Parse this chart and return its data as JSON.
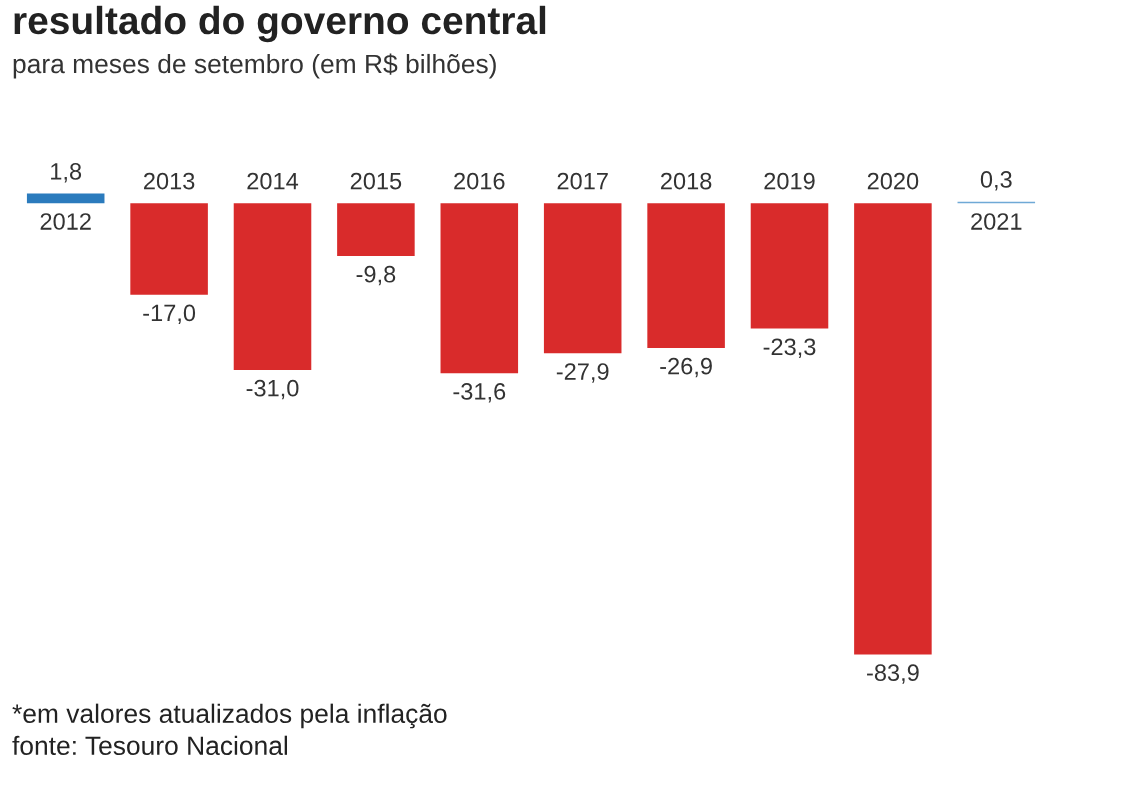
{
  "chart_data": {
    "type": "bar",
    "title": "resultado do governo central",
    "subtitle": "para meses de setembro (em R$ bilhões)",
    "categories": [
      "2012",
      "2013",
      "2014",
      "2015",
      "2016",
      "2017",
      "2018",
      "2019",
      "2020",
      "2021"
    ],
    "values": [
      1.8,
      -17.0,
      -31.0,
      -9.8,
      -31.6,
      -27.9,
      -26.9,
      -23.3,
      -83.9,
      0.3
    ],
    "colors": [
      "#2b7bbd",
      "#d92b2b",
      "#d92b2b",
      "#d92b2b",
      "#d92b2b",
      "#d92b2b",
      "#d92b2b",
      "#d92b2b",
      "#d92b2b",
      "#6fa9d6"
    ],
    "value_labels": [
      "1,8",
      "-17,0",
      "-31,0",
      "-9,8",
      "-31,6",
      "-27,9",
      "-26,9",
      "-23,3",
      "-83,9",
      "0,3"
    ],
    "annotations": [
      "*em valores atualizados pela inflação",
      "fonte: Tesouro Nacional"
    ]
  }
}
